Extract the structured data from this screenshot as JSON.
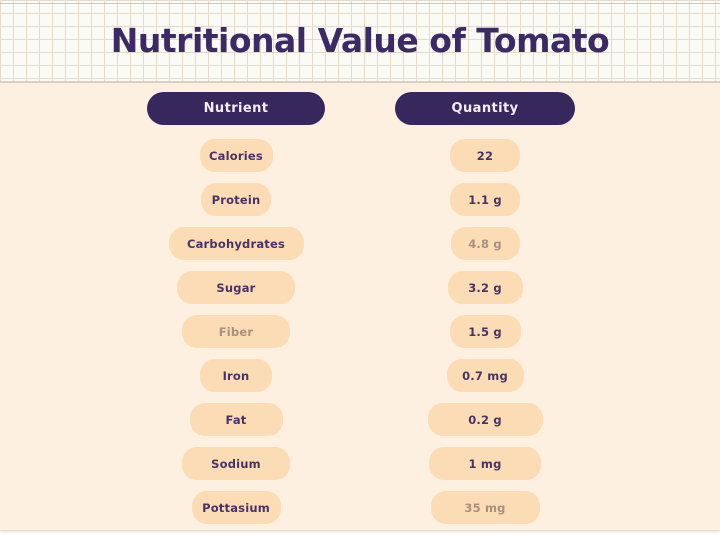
{
  "title": "Nutritional Value of Tomato",
  "table": {
    "headers": {
      "nutrient": "Nutrient",
      "quantity": "Quantity"
    },
    "rows": [
      {
        "nutrient": "Calories",
        "quantity": "22"
      },
      {
        "nutrient": "Protein",
        "quantity": "1.1 g"
      },
      {
        "nutrient": "Carbohydrates",
        "quantity": "4.8 g"
      },
      {
        "nutrient": "Sugar",
        "quantity": "3.2 g"
      },
      {
        "nutrient": "Fiber",
        "quantity": "1.5 g"
      },
      {
        "nutrient": "Iron",
        "quantity": "0.7 mg"
      },
      {
        "nutrient": "Fat",
        "quantity": "0.2 g"
      },
      {
        "nutrient": "Sodium",
        "quantity": "1 mg"
      },
      {
        "nutrient": "Pottasium",
        "quantity": "35 mg"
      }
    ]
  },
  "chart_data": {
    "type": "table",
    "title": "Nutritional Value of Tomato",
    "columns": [
      "Nutrient",
      "Quantity"
    ],
    "rows": [
      [
        "Calories",
        "22"
      ],
      [
        "Protein",
        "1.1 g"
      ],
      [
        "Carbohydrates",
        "4.8 g"
      ],
      [
        "Sugar",
        "3.2 g"
      ],
      [
        "Fiber",
        "1.5 g"
      ],
      [
        "Iron",
        "0.7 mg"
      ],
      [
        "Fat",
        "0.2 g"
      ],
      [
        "Sodium",
        "1 mg"
      ],
      [
        "Pottasium",
        "35 mg"
      ]
    ]
  },
  "colors": {
    "title": "#3b2a66",
    "header-pill": "#36275d",
    "header-text": "#f4eef6",
    "row-pill": "#fbdcb5",
    "row-text": "#473366",
    "row-text-faded": "#a8917e",
    "canvas": "#fdf0e1",
    "grid-bg": "#fbfaf5"
  }
}
